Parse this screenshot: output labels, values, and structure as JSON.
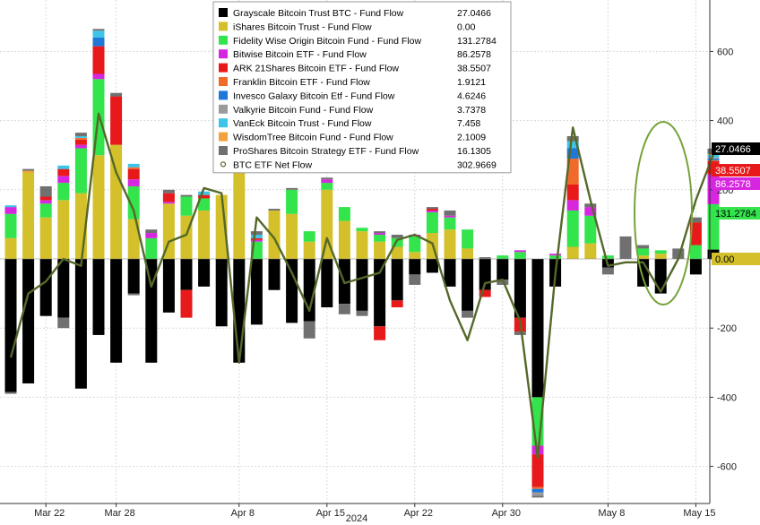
{
  "chart_data": {
    "type": "bar",
    "stacked": true,
    "title": "",
    "xlabel": "2024",
    "ylabel": "",
    "ylim": [
      -700,
      760
    ],
    "yticks": [
      -600,
      -400,
      -200,
      0,
      200,
      400,
      600
    ],
    "xtick_labels": [
      {
        "label": "Mar 22",
        "index": 2
      },
      {
        "label": "Mar 28",
        "index": 6
      },
      {
        "label": "Apr 8",
        "index": 13
      },
      {
        "label": "Apr 15",
        "index": 18
      },
      {
        "label": "Apr 22",
        "index": 23
      },
      {
        "label": "Apr 30",
        "index": 28
      },
      {
        "label": "May 8",
        "index": 34
      },
      {
        "label": "May 15",
        "index": 39
      }
    ],
    "grid": true,
    "legend_position": "top",
    "series": [
      {
        "name": "Grayscale Bitcoin Trust BTC - Fund Flow",
        "color": "#000000",
        "latest": "27.0466",
        "values": [
          -385,
          -360,
          -165,
          -170,
          -375,
          -220,
          -300,
          -100,
          -300,
          -155,
          -90,
          -80,
          -195,
          -300,
          -190,
          -90,
          -185,
          -180,
          -140,
          -130,
          -150,
          -195,
          -120,
          -45,
          -40,
          -80,
          -150,
          -90,
          -60,
          -170,
          -400,
          -80,
          0,
          0,
          -25,
          0,
          -80,
          -100,
          0,
          -45,
          27.0466
        ]
      },
      {
        "name": "iShares Bitcoin Trust - Fund Flow",
        "color": "#d4c02a",
        "latest": "0.00",
        "values": [
          60,
          250,
          120,
          170,
          190,
          300,
          330,
          115,
          0,
          160,
          125,
          140,
          185,
          305,
          0,
          140,
          130,
          50,
          200,
          110,
          80,
          50,
          35,
          20,
          75,
          85,
          30,
          0,
          0,
          0,
          0,
          0,
          35,
          45,
          0,
          0,
          10,
          15,
          0,
          0,
          0
        ]
      },
      {
        "name": "Fidelity Wise Origin Bitcoin Fund - Fund Flow",
        "color": "#33e44d",
        "latest": "131.2784",
        "values": [
          70,
          0,
          40,
          50,
          130,
          220,
          0,
          95,
          60,
          0,
          55,
          35,
          0,
          85,
          50,
          0,
          70,
          30,
          20,
          40,
          10,
          20,
          25,
          45,
          60,
          35,
          55,
          0,
          10,
          20,
          -140,
          10,
          105,
          80,
          10,
          0,
          20,
          10,
          0,
          40,
          131.2784
        ]
      },
      {
        "name": "Bitwise Bitcoin ETF - Fund Flow",
        "color": "#d626e0",
        "latest": "86.2578",
        "values": [
          20,
          0,
          10,
          20,
          10,
          15,
          0,
          20,
          15,
          5,
          0,
          0,
          0,
          0,
          5,
          0,
          0,
          0,
          10,
          0,
          0,
          5,
          0,
          5,
          5,
          5,
          0,
          0,
          0,
          5,
          -25,
          5,
          30,
          25,
          0,
          0,
          0,
          0,
          0,
          0,
          86.2578
        ]
      },
      {
        "name": "ARK 21Shares Bitcoin ETF - Fund Flow",
        "color": "#e8191a",
        "latest": "38.5507",
        "values": [
          0,
          0,
          10,
          20,
          15,
          80,
          140,
          30,
          0,
          25,
          -80,
          10,
          0,
          0,
          5,
          0,
          0,
          0,
          0,
          0,
          0,
          -40,
          -20,
          0,
          5,
          0,
          0,
          -20,
          0,
          -40,
          -95,
          0,
          45,
          0,
          0,
          0,
          0,
          0,
          0,
          65,
          38.5507
        ]
      },
      {
        "name": "Franklin Bitcoin ETF - Fund Flow",
        "color": "#f06b2a",
        "latest": "1.9121",
        "values": [
          0,
          0,
          0,
          0,
          5,
          0,
          0,
          5,
          0,
          0,
          0,
          0,
          0,
          0,
          0,
          0,
          0,
          0,
          0,
          0,
          0,
          0,
          0,
          0,
          0,
          0,
          0,
          0,
          0,
          0,
          -5,
          0,
          75,
          0,
          0,
          0,
          0,
          0,
          0,
          0,
          1.9121
        ]
      },
      {
        "name": "Invesco Galaxy Bitcoin Etf - Fund Flow",
        "color": "#1f78d8",
        "latest": "4.6246",
        "values": [
          0,
          0,
          0,
          0,
          0,
          25,
          0,
          0,
          0,
          0,
          0,
          0,
          0,
          0,
          0,
          0,
          0,
          0,
          0,
          0,
          0,
          0,
          0,
          0,
          0,
          0,
          0,
          0,
          0,
          0,
          -10,
          0,
          30,
          0,
          0,
          0,
          0,
          0,
          0,
          0,
          4.6246
        ]
      },
      {
        "name": "Valkyrie Bitcoin Fund - Fund Flow",
        "color": "#9a9a9a",
        "latest": "3.7378",
        "values": [
          0,
          0,
          0,
          0,
          0,
          0,
          0,
          0,
          0,
          0,
          0,
          0,
          0,
          0,
          0,
          0,
          0,
          0,
          0,
          0,
          0,
          0,
          0,
          0,
          0,
          0,
          0,
          0,
          0,
          0,
          -10,
          0,
          0,
          0,
          0,
          0,
          0,
          0,
          0,
          0,
          3.7378
        ]
      },
      {
        "name": "VanEck Bitcoin Trust - Fund Flow",
        "color": "#3cc5e8",
        "latest": "7.458",
        "values": [
          5,
          0,
          0,
          10,
          5,
          20,
          0,
          10,
          0,
          0,
          0,
          10,
          0,
          20,
          10,
          0,
          0,
          0,
          0,
          0,
          0,
          0,
          0,
          0,
          0,
          0,
          0,
          0,
          0,
          0,
          0,
          0,
          20,
          0,
          0,
          0,
          0,
          0,
          0,
          0,
          7.458
        ]
      },
      {
        "name": "WisdomTree Bitcoin Fund - Fund Flow",
        "color": "#f2a13d",
        "latest": "2.1009",
        "values": [
          0,
          5,
          0,
          0,
          0,
          0,
          0,
          0,
          0,
          0,
          0,
          0,
          0,
          0,
          0,
          0,
          0,
          0,
          0,
          0,
          0,
          0,
          0,
          0,
          0,
          0,
          0,
          0,
          0,
          0,
          0,
          0,
          0,
          0,
          0,
          0,
          0,
          0,
          0,
          0,
          2.1009
        ]
      },
      {
        "name": "ProShares Bitcoin Strategy ETF - Fund Flow",
        "color": "#707070",
        "latest": "16.1305",
        "values": [
          -5,
          5,
          30,
          -30,
          10,
          5,
          10,
          -5,
          10,
          10,
          5,
          0,
          0,
          5,
          10,
          5,
          5,
          -50,
          5,
          -30,
          -15,
          5,
          10,
          -30,
          5,
          15,
          -20,
          5,
          -15,
          -10,
          -5,
          0,
          15,
          10,
          -20,
          65,
          10,
          0,
          30,
          15,
          16.1305
        ]
      }
    ],
    "net_flow": {
      "name": "BTC ETF Net Flow",
      "color": "#55682a",
      "latest": "302.9669",
      "values": [
        -285,
        -100,
        -65,
        0,
        -20,
        420,
        250,
        140,
        -80,
        50,
        70,
        205,
        190,
        -300,
        120,
        60,
        -40,
        -150,
        60,
        -70,
        -55,
        -40,
        55,
        70,
        45,
        -120,
        -235,
        -70,
        -60,
        -180,
        -575,
        -45,
        380,
        170,
        -20,
        -10,
        -10,
        -95,
        0,
        170,
        302.9669
      ]
    },
    "last_value_tags": [
      {
        "series": "Grayscale Bitcoin Trust BTC - Fund Flow",
        "label": "27.0466",
        "bg": "#000000",
        "fg": "#ffffff"
      },
      {
        "series": "ARK 21Shares Bitcoin ETF - Fund Flow",
        "label": "38.5507",
        "bg": "#e8191a",
        "fg": "#ffffff"
      },
      {
        "series": "Bitwise Bitcoin ETF - Fund Flow",
        "label": "86.2578",
        "bg": "#d626e0",
        "fg": "#ffffff"
      },
      {
        "series": "Fidelity Wise Origin Bitcoin Fund - Fund Flow",
        "label": "131.2784",
        "bg": "#33e44d",
        "fg": "#000000"
      },
      {
        "series": "iShares Bitcoin Trust - Fund Flow",
        "label": "0.00",
        "bg": "#d4c02a",
        "fg": "#000000"
      }
    ],
    "annotation": {
      "type": "ellipse",
      "target": "latest bars",
      "color": "#76a33a"
    }
  }
}
